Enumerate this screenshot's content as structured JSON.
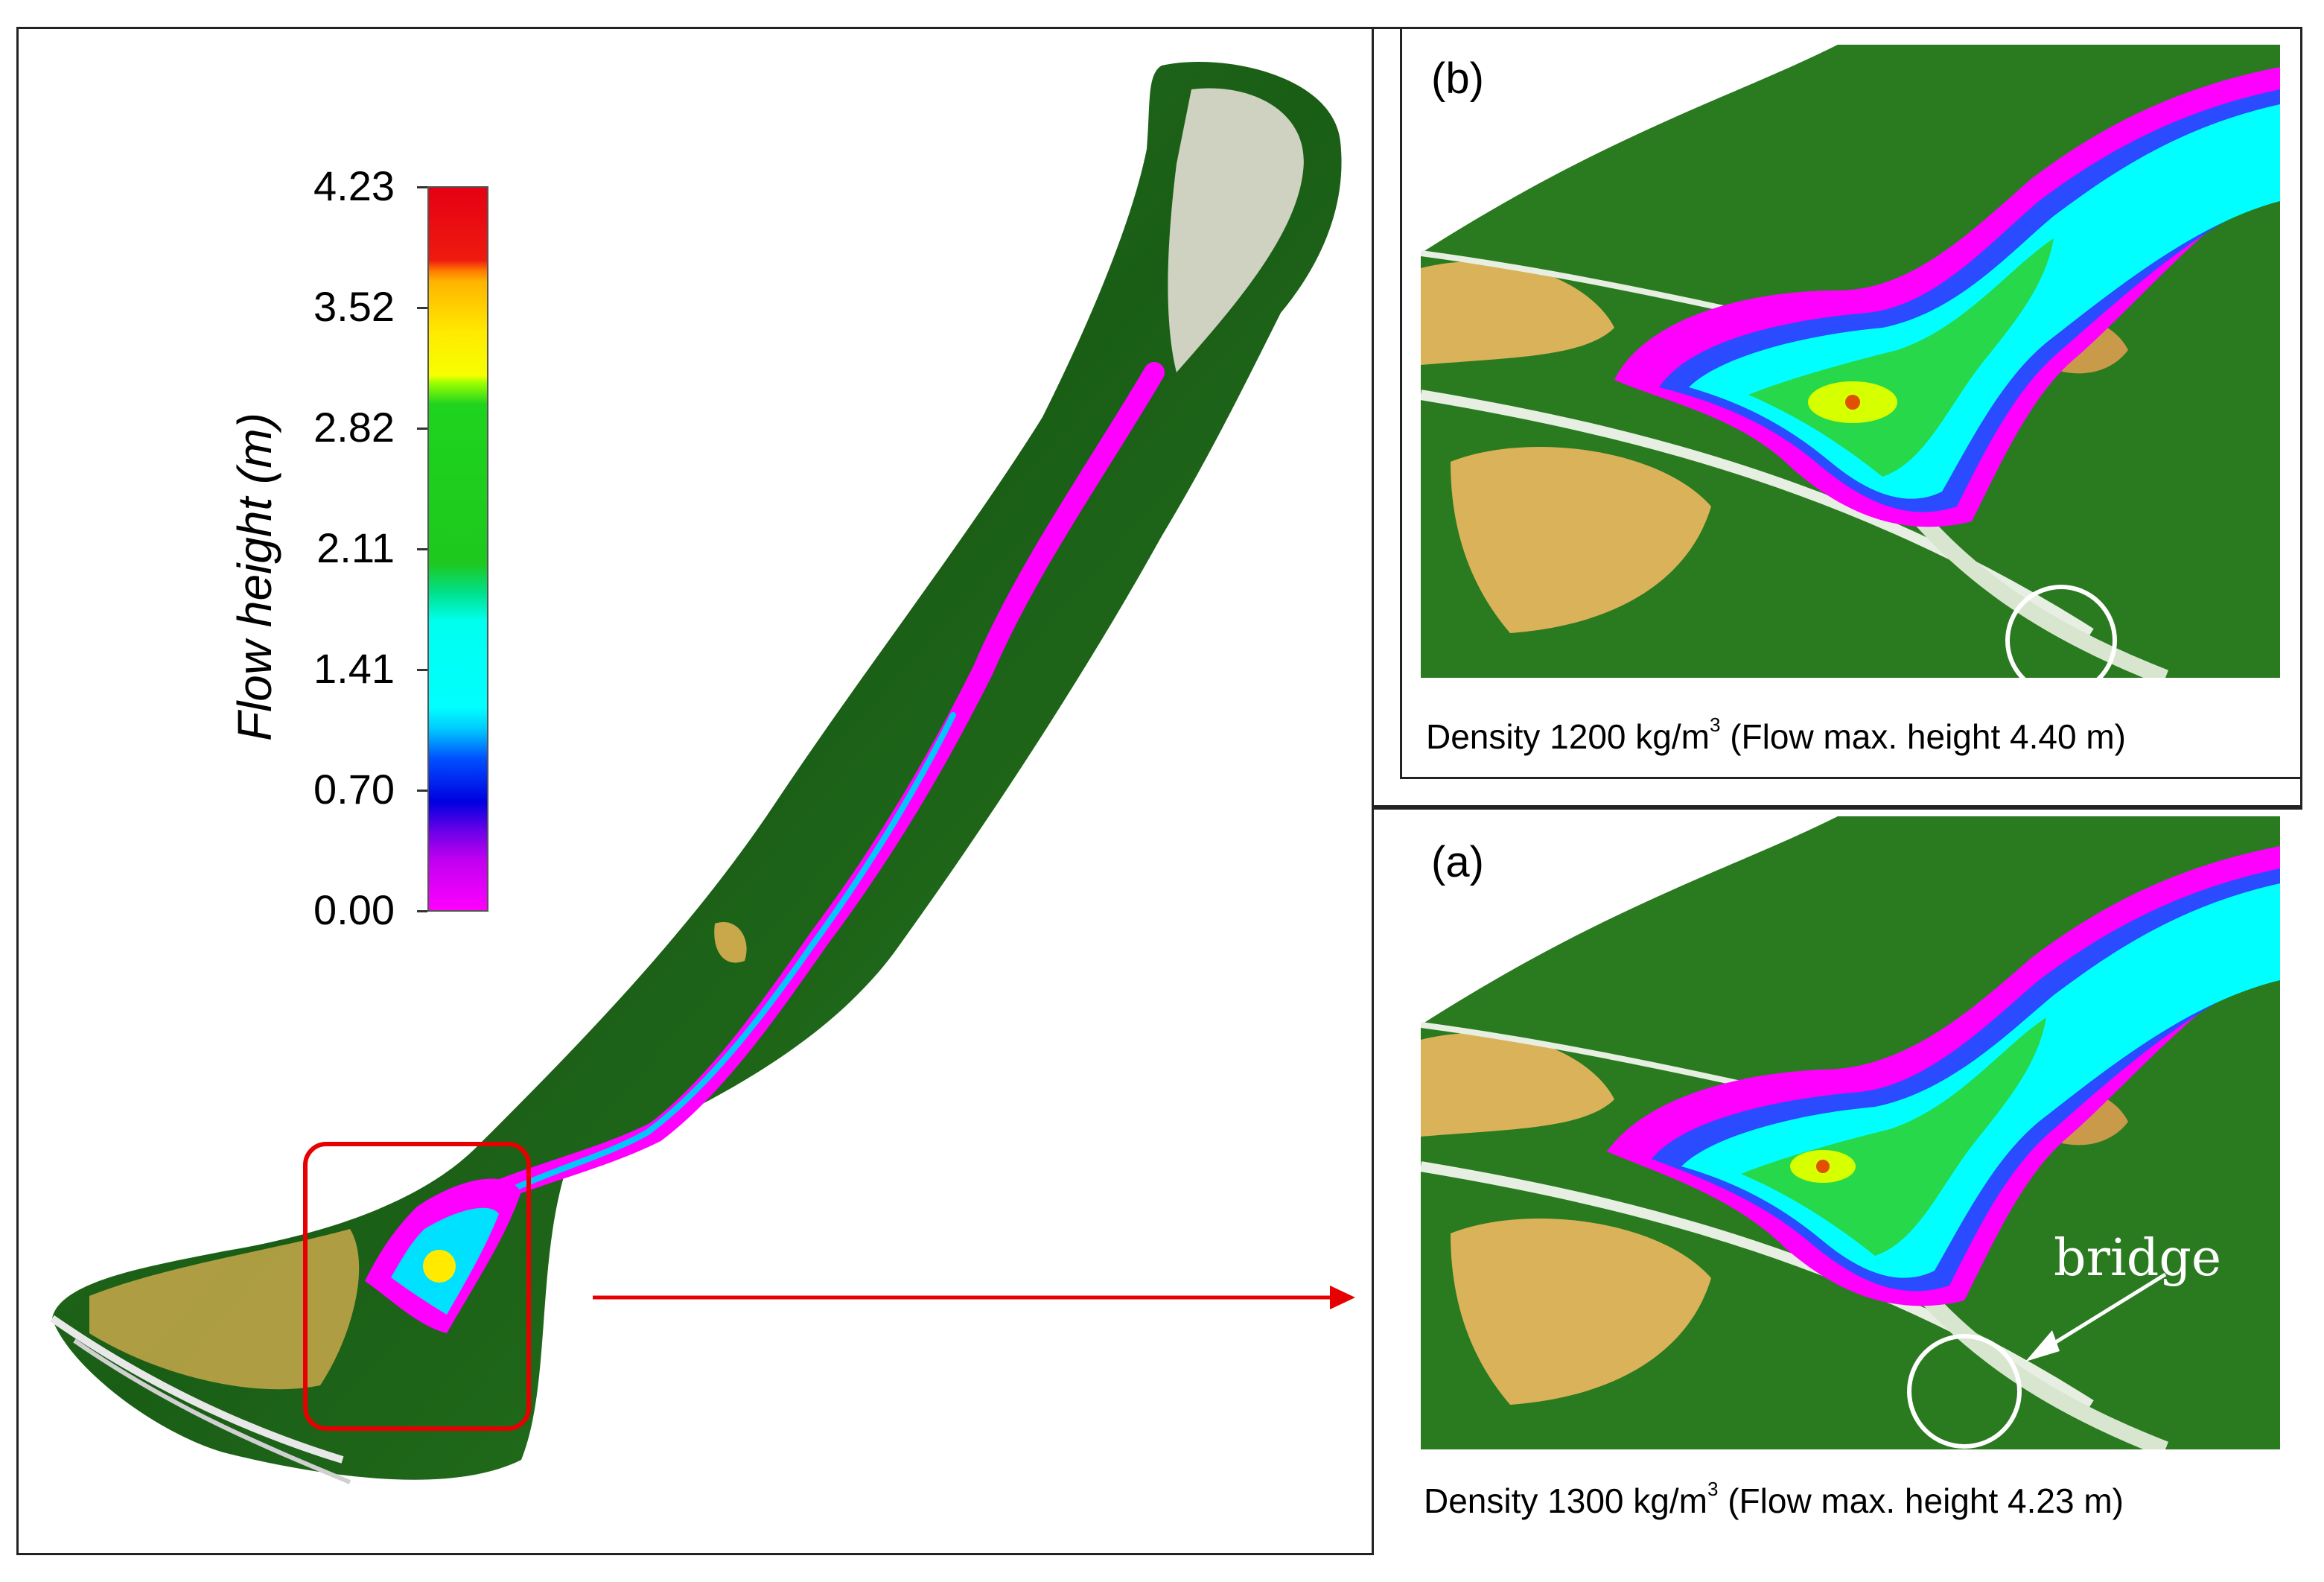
{
  "legend": {
    "title": "Flow height (m)",
    "ticks": [
      "4.23",
      "3.52",
      "2.82",
      "2.11",
      "1.41",
      "0.70",
      "0.00"
    ],
    "max_value": 4.23,
    "min_value": 0.0,
    "colorscale": [
      "#e60012",
      "#ffea00",
      "#1ec81e",
      "#00ffff",
      "#0000e0",
      "#ff00ff"
    ]
  },
  "panels": {
    "b": {
      "label": "(b)",
      "caption_prefix": "Density 1200 kg/m",
      "caption_sup": "3",
      "caption_suffix": " (Flow max. height 4.40 m)"
    },
    "a": {
      "label": "(a)",
      "caption_prefix": "Density 1300 kg/m",
      "caption_sup": "3",
      "caption_suffix": " (Flow max. height 4.23 m)",
      "annotation": "bridge"
    }
  },
  "colors": {
    "highlight_box": "#e60000",
    "arrow": "#e60000",
    "forest": "#1f6b1a",
    "field": "#d9b25a",
    "bridge_marker": "#ffffff"
  }
}
